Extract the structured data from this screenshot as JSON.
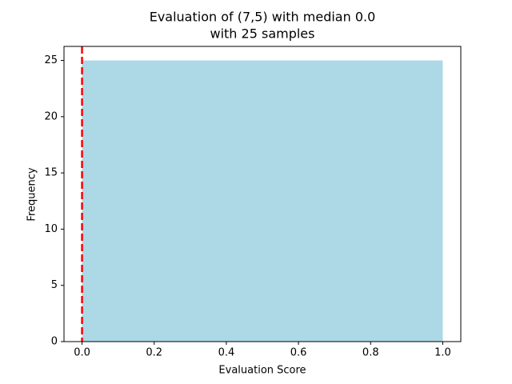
{
  "chart_data": {
    "type": "histogram",
    "title": "Evaluation of (7,5) with median 0.0",
    "subtitle": "with 25 samples",
    "x_label": "Evaluation Score",
    "y_label": "Frequency",
    "bins": [
      0,
      1
    ],
    "counts": [
      25
    ],
    "color": "#add8e6",
    "median_line": {
      "value": 0,
      "color": "#ff0000"
    },
    "xlim": [
      -0.05,
      1.05
    ],
    "xticks": [
      {
        "value": 0,
        "label": "0.0"
      },
      {
        "value": 0.2,
        "label": "0.2"
      },
      {
        "value": 0.4,
        "label": "0.4"
      },
      {
        "value": 0.6,
        "label": "0.6"
      },
      {
        "value": 0.8,
        "label": "0.8"
      },
      {
        "value": 1,
        "label": "1.0"
      }
    ],
    "ylim": [
      0,
      26.25
    ],
    "yticks": [
      0,
      5,
      10,
      15,
      20,
      25
    ]
  }
}
